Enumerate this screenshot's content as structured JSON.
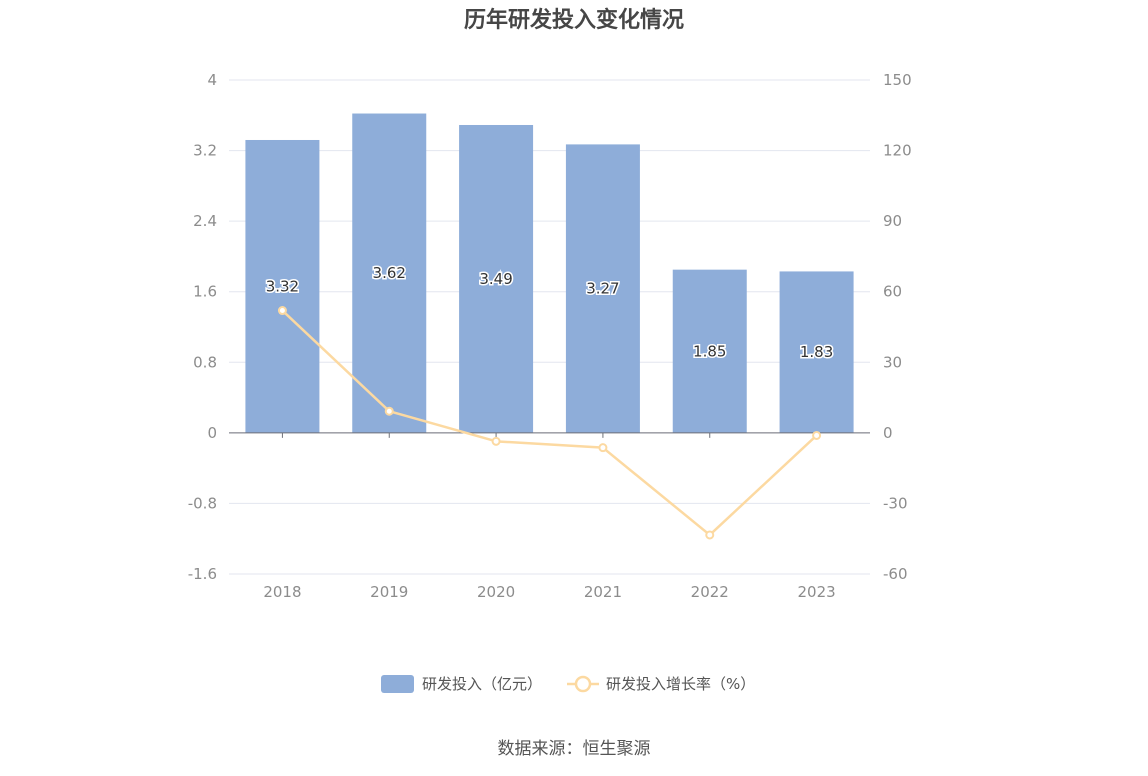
{
  "chart_data": {
    "type": "bar",
    "title": "历年研发投入变化情况",
    "categories": [
      "2018",
      "2019",
      "2020",
      "2021",
      "2022",
      "2023"
    ],
    "series": [
      {
        "name": "研发投入（亿元）",
        "type": "bar",
        "axis": "left",
        "values": [
          3.32,
          3.62,
          3.49,
          3.27,
          1.85,
          1.83
        ],
        "color": "#8eadd9"
      },
      {
        "name": "研发投入增长率（%）",
        "type": "line",
        "axis": "right",
        "values": [
          52.0,
          9.2,
          -3.6,
          -6.3,
          -43.4,
          -1.1
        ],
        "color": "#fcd9a1"
      }
    ],
    "y_left": {
      "ticks": [
        "4",
        "3.2",
        "2.4",
        "1.6",
        "0.8",
        "0",
        "-0.8",
        "-1.6"
      ],
      "range": [
        -1.6,
        4
      ]
    },
    "y_right": {
      "ticks": [
        "150",
        "120",
        "90",
        "60",
        "30",
        "0",
        "-30",
        "-60"
      ],
      "range": [
        -60,
        150
      ]
    },
    "grid": true,
    "legend": "bottom-center"
  },
  "source": "数据来源：恒生聚源"
}
